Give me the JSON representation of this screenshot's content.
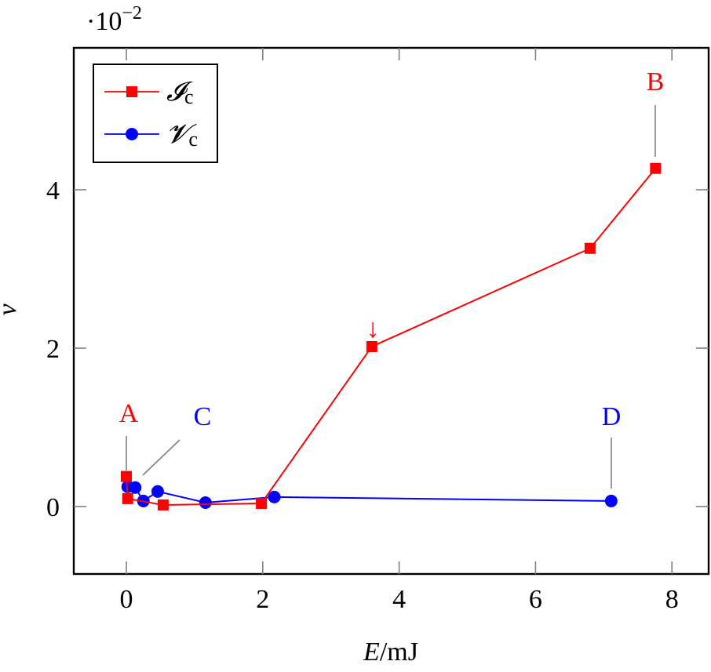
{
  "chart_data": {
    "type": "line",
    "title": "",
    "xlabel": "E/mJ",
    "ylabel": "v",
    "y_scale_note": "·10^-2",
    "xlim": [
      -0.75,
      8.5
    ],
    "ylim": [
      -0.85,
      5.8
    ],
    "xticks": [
      0,
      2,
      4,
      6,
      8
    ],
    "yticks": [
      0,
      2,
      4
    ],
    "grid": false,
    "legend_position": "upper left",
    "series": [
      {
        "name": "Ic",
        "label_display": "𝓘",
        "label_sub": "c",
        "color": "#ff0000",
        "marker": "square",
        "x": [
          0.0,
          0.02,
          0.54,
          1.98,
          3.6,
          6.8,
          7.76
        ],
        "y": [
          0.38,
          0.1,
          0.02,
          0.04,
          2.02,
          3.26,
          4.27
        ]
      },
      {
        "name": "Vc",
        "label_display": "𝓥",
        "label_sub": "c",
        "color": "#0000ff",
        "marker": "circle",
        "x": [
          0.02,
          0.13,
          0.25,
          0.46,
          1.16,
          2.17,
          7.11
        ],
        "y": [
          0.25,
          0.24,
          0.07,
          0.19,
          0.05,
          0.12,
          0.07
        ]
      }
    ],
    "annotations": [
      {
        "text": "A",
        "color": "#ff0000",
        "x": 0.0,
        "y": 0.38,
        "pin": "vertical"
      },
      {
        "text": "B",
        "color": "#ff0000",
        "x": 7.76,
        "y": 4.27,
        "pin": "vertical"
      },
      {
        "text": "C",
        "color": "#0000ff",
        "x": 0.13,
        "y": 0.24,
        "pin": "diagonal"
      },
      {
        "text": "D",
        "color": "#0000ff",
        "x": 7.11,
        "y": 0.07,
        "pin": "vertical"
      },
      {
        "text": "↓",
        "color": "#ff0000",
        "x": 3.6,
        "y": 2.02,
        "pin": "none"
      }
    ]
  },
  "labels": {
    "scale_prefix": "·10",
    "scale_exp": "−2",
    "xlabel_var": "E",
    "xlabel_unit": "/mJ",
    "ylabel": "v",
    "xtick_labels": [
      "0",
      "2",
      "4",
      "6",
      "8"
    ],
    "ytick_labels": [
      "0",
      "2",
      "4"
    ],
    "legend_ic": "𝓘",
    "legend_vc": "𝓥",
    "legend_sub": "c",
    "annot_a": "A",
    "annot_b": "B",
    "annot_c": "C",
    "annot_d": "D",
    "arrow": "↓"
  },
  "colors": {
    "red": "#ff0000",
    "blue": "#0000ff",
    "pin": "#808080",
    "axis": "#000000"
  }
}
